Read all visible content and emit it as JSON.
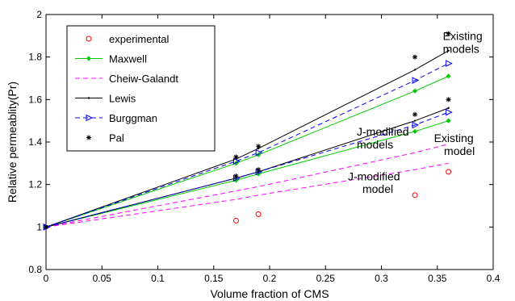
{
  "chart_data": {
    "type": "line",
    "xlabel": "Volume fraction of CMS",
    "ylabel": "Relative permeablity(Pr)",
    "xlim": [
      0,
      0.4
    ],
    "ylim": [
      0.8,
      2
    ],
    "xticks": [
      "0",
      "0.05",
      "0.1",
      "0.15",
      "0.2",
      "0.25",
      "0.3",
      "0.35",
      "0.4"
    ],
    "yticks": [
      "0.8",
      "1",
      "1.2",
      "1.4",
      "1.6",
      "1.8",
      "2"
    ],
    "legend_position": "top-left",
    "grid": false,
    "legend": [
      {
        "label": "experimental",
        "color": "#ff0000",
        "line": "none",
        "marker": "circle"
      },
      {
        "label": "Maxwell",
        "color": "#00cc00",
        "line": "solid",
        "marker": "diamond"
      },
      {
        "label": "Cheiw-Galandt",
        "color": "#ff00ff",
        "line": "dashed",
        "marker": "none"
      },
      {
        "label": "Lewis",
        "color": "#000000",
        "line": "solid",
        "marker": "dot"
      },
      {
        "label": "Burggman",
        "color": "#0000ff",
        "line": "dashed",
        "marker": "triangle-right"
      },
      {
        "label": "Pal",
        "color": "#000000",
        "line": "none",
        "marker": "star"
      }
    ],
    "series": [
      {
        "group": "existing",
        "style": 0,
        "x": [
          0.17,
          0.19,
          0.33,
          0.36
        ],
        "y": [
          1.03,
          1.06,
          1.15,
          1.26
        ]
      },
      {
        "group": "existing",
        "style": 1,
        "x": [
          0,
          0.17,
          0.19,
          0.33,
          0.36
        ],
        "y": [
          1,
          1.3,
          1.34,
          1.64,
          1.71
        ]
      },
      {
        "group": "existing",
        "style": 2,
        "x": [
          0,
          0.17,
          0.19,
          0.33,
          0.36
        ],
        "y": [
          1,
          1.17,
          1.19,
          1.35,
          1.39
        ]
      },
      {
        "group": "existing",
        "style": 3,
        "x": [
          0,
          0.17,
          0.19,
          0.33,
          0.36
        ],
        "y": [
          1,
          1.32,
          1.37,
          1.74,
          1.83
        ]
      },
      {
        "group": "existing",
        "style": 4,
        "x": [
          0,
          0.17,
          0.19,
          0.33,
          0.36
        ],
        "y": [
          1,
          1.31,
          1.35,
          1.69,
          1.77
        ]
      },
      {
        "group": "existing",
        "style": 5,
        "x": [
          0,
          0.17,
          0.19,
          0.33,
          0.36
        ],
        "y": [
          1,
          1.33,
          1.38,
          1.8,
          1.91
        ]
      },
      {
        "group": "J-modified",
        "style": 1,
        "x": [
          0,
          0.17,
          0.19,
          0.33,
          0.36
        ],
        "y": [
          1,
          1.22,
          1.25,
          1.45,
          1.5
        ]
      },
      {
        "group": "J-modified",
        "style": 2,
        "x": [
          0,
          0.17,
          0.19,
          0.33,
          0.36
        ],
        "y": [
          1,
          1.13,
          1.15,
          1.27,
          1.3
        ]
      },
      {
        "group": "J-modified",
        "style": 3,
        "x": [
          0,
          0.17,
          0.19,
          0.33,
          0.36
        ],
        "y": [
          1,
          1.23,
          1.26,
          1.5,
          1.56
        ]
      },
      {
        "group": "J-modified",
        "style": 4,
        "x": [
          0,
          0.17,
          0.19,
          0.33,
          0.36
        ],
        "y": [
          1,
          1.23,
          1.26,
          1.48,
          1.54
        ]
      },
      {
        "group": "J-modified",
        "style": 5,
        "x": [
          0,
          0.17,
          0.19,
          0.33,
          0.36
        ],
        "y": [
          1,
          1.24,
          1.27,
          1.53,
          1.6
        ]
      }
    ],
    "annotations": [
      {
        "text": "Existing",
        "x": 0.355,
        "y": 1.88
      },
      {
        "text": "models",
        "x": 0.355,
        "y": 1.82
      },
      {
        "text": "J-modified",
        "x": 0.278,
        "y": 1.43
      },
      {
        "text": "models",
        "x": 0.278,
        "y": 1.37
      },
      {
        "text": "Existing",
        "x": 0.347,
        "y": 1.4
      },
      {
        "text": "model",
        "x": 0.356,
        "y": 1.34
      },
      {
        "text": "J-modified",
        "x": 0.27,
        "y": 1.22
      },
      {
        "text": "model",
        "x": 0.283,
        "y": 1.16
      }
    ]
  }
}
